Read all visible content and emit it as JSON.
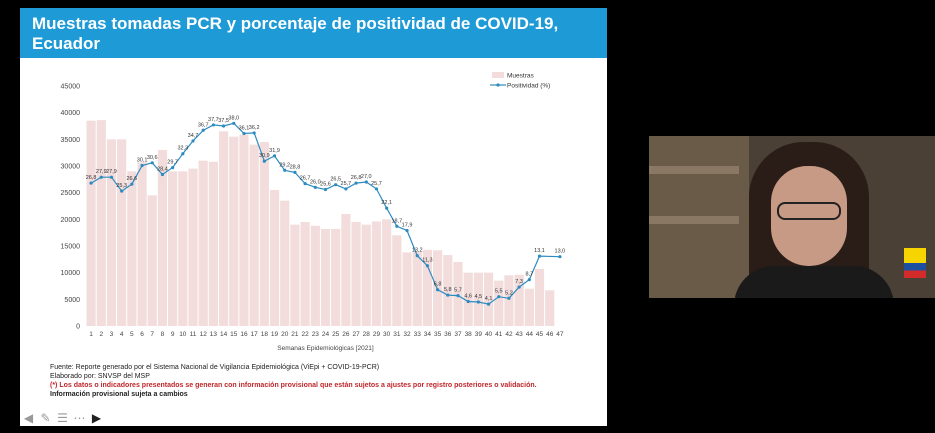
{
  "slide": {
    "title_line1": "Muestras tomadas PCR y porcentaje de positividad de COVID-19,",
    "title_line2": "Ecuador"
  },
  "footer": {
    "source": "Fuente: Reporte generado por el Sistema Nacional de Vigilancia Epidemiológica (ViEpi + COVID-19-PCR)",
    "prepared": "Elaborado por: SNVSP del MSP",
    "warning": "(*) Los datos o indicadores presentados se generan con información provisional que están sujetos a ajustes por registro posteriores o validación.",
    "provisional": "Información provisional sujeta a cambios"
  },
  "colors": {
    "title_bg": "#1e9ad6",
    "bars": "#f2dcdc",
    "line": "#2e8bc0",
    "warning": "#c0262b"
  },
  "chart_data": {
    "type": "bar",
    "title": "",
    "xlabel": "Semanas Epidemiológicas [2021]",
    "ylabel": "",
    "ylim": [
      0,
      45000
    ],
    "yticks": [
      0,
      5000,
      10000,
      15000,
      20000,
      25000,
      30000,
      35000,
      40000,
      45000
    ],
    "legend_position": "top-right",
    "categories": [
      "1",
      "2",
      "3",
      "4",
      "5",
      "6",
      "7",
      "8",
      "9",
      "10",
      "11",
      "12",
      "13",
      "14",
      "15",
      "16",
      "17",
      "18",
      "19",
      "20",
      "21",
      "22",
      "23",
      "24",
      "25",
      "26",
      "27",
      "28",
      "29",
      "30",
      "31",
      "32",
      "33",
      "34",
      "35",
      "36",
      "37",
      "38",
      "39",
      "40",
      "41",
      "42",
      "43",
      "44",
      "45",
      "46",
      "47"
    ],
    "series": [
      {
        "name": "Muestras",
        "kind": "bar",
        "values": [
          38500,
          38600,
          35000,
          35000,
          29000,
          30700,
          24500,
          33000,
          29000,
          29000,
          29500,
          31000,
          30800,
          36500,
          35500,
          35900,
          34000,
          34500,
          25500,
          23500,
          19000,
          19500,
          18800,
          18200,
          18200,
          21000,
          19500,
          19000,
          19600,
          20000,
          17000,
          13800,
          14000,
          14300,
          14200,
          13300,
          12000,
          10000,
          10000,
          10000,
          8500,
          9500,
          9600,
          7000,
          10700,
          6700,
          null
        ]
      },
      {
        "name": "Positividad (%)",
        "kind": "line",
        "axis_max": 45,
        "values": [
          26.8,
          27.9,
          27.9,
          25.3,
          26.6,
          30.1,
          30.6,
          28.4,
          29.7,
          32.3,
          34.7,
          36.7,
          37.7,
          37.5,
          38.0,
          36.1,
          36.2,
          30.9,
          31.9,
          29.2,
          28.8,
          26.7,
          26.0,
          25.6,
          26.5,
          25.7,
          26.8,
          27.0,
          25.7,
          22.1,
          18.7,
          17.9,
          13.2,
          11.3,
          6.8,
          5.8,
          5.7,
          4.6,
          4.5,
          4.1,
          5.5,
          5.2,
          7.3,
          8.7,
          13.1,
          null,
          13.0
        ],
        "labels": [
          "26,8",
          "27,9",
          "27,9",
          "25,3",
          "26,6",
          "30,1",
          "30,6",
          "28,4",
          "29,7",
          "32,3",
          "34,7",
          "36,7",
          "37,7",
          "37,5",
          "38,0",
          "36,1",
          "36,2",
          "30,9",
          "31,9",
          "29,2",
          "28,8",
          "26,7",
          "26,0",
          "25,6",
          "26,5",
          "25,7",
          "26,8",
          "27,0",
          "25,7",
          "22,1",
          "18,7",
          "17,9",
          "13,2",
          "11,3",
          "6,8",
          "5,8",
          "5,7",
          "4,6",
          "4,5",
          "4,1",
          "5,5",
          "5,2",
          "7,3",
          "8,7",
          "13,1",
          "",
          "13,0"
        ]
      }
    ]
  },
  "nav": {
    "icons": [
      "arrow-left-icon",
      "pen-icon",
      "menu-icon",
      "more-icon",
      "arrow-right-icon"
    ]
  }
}
